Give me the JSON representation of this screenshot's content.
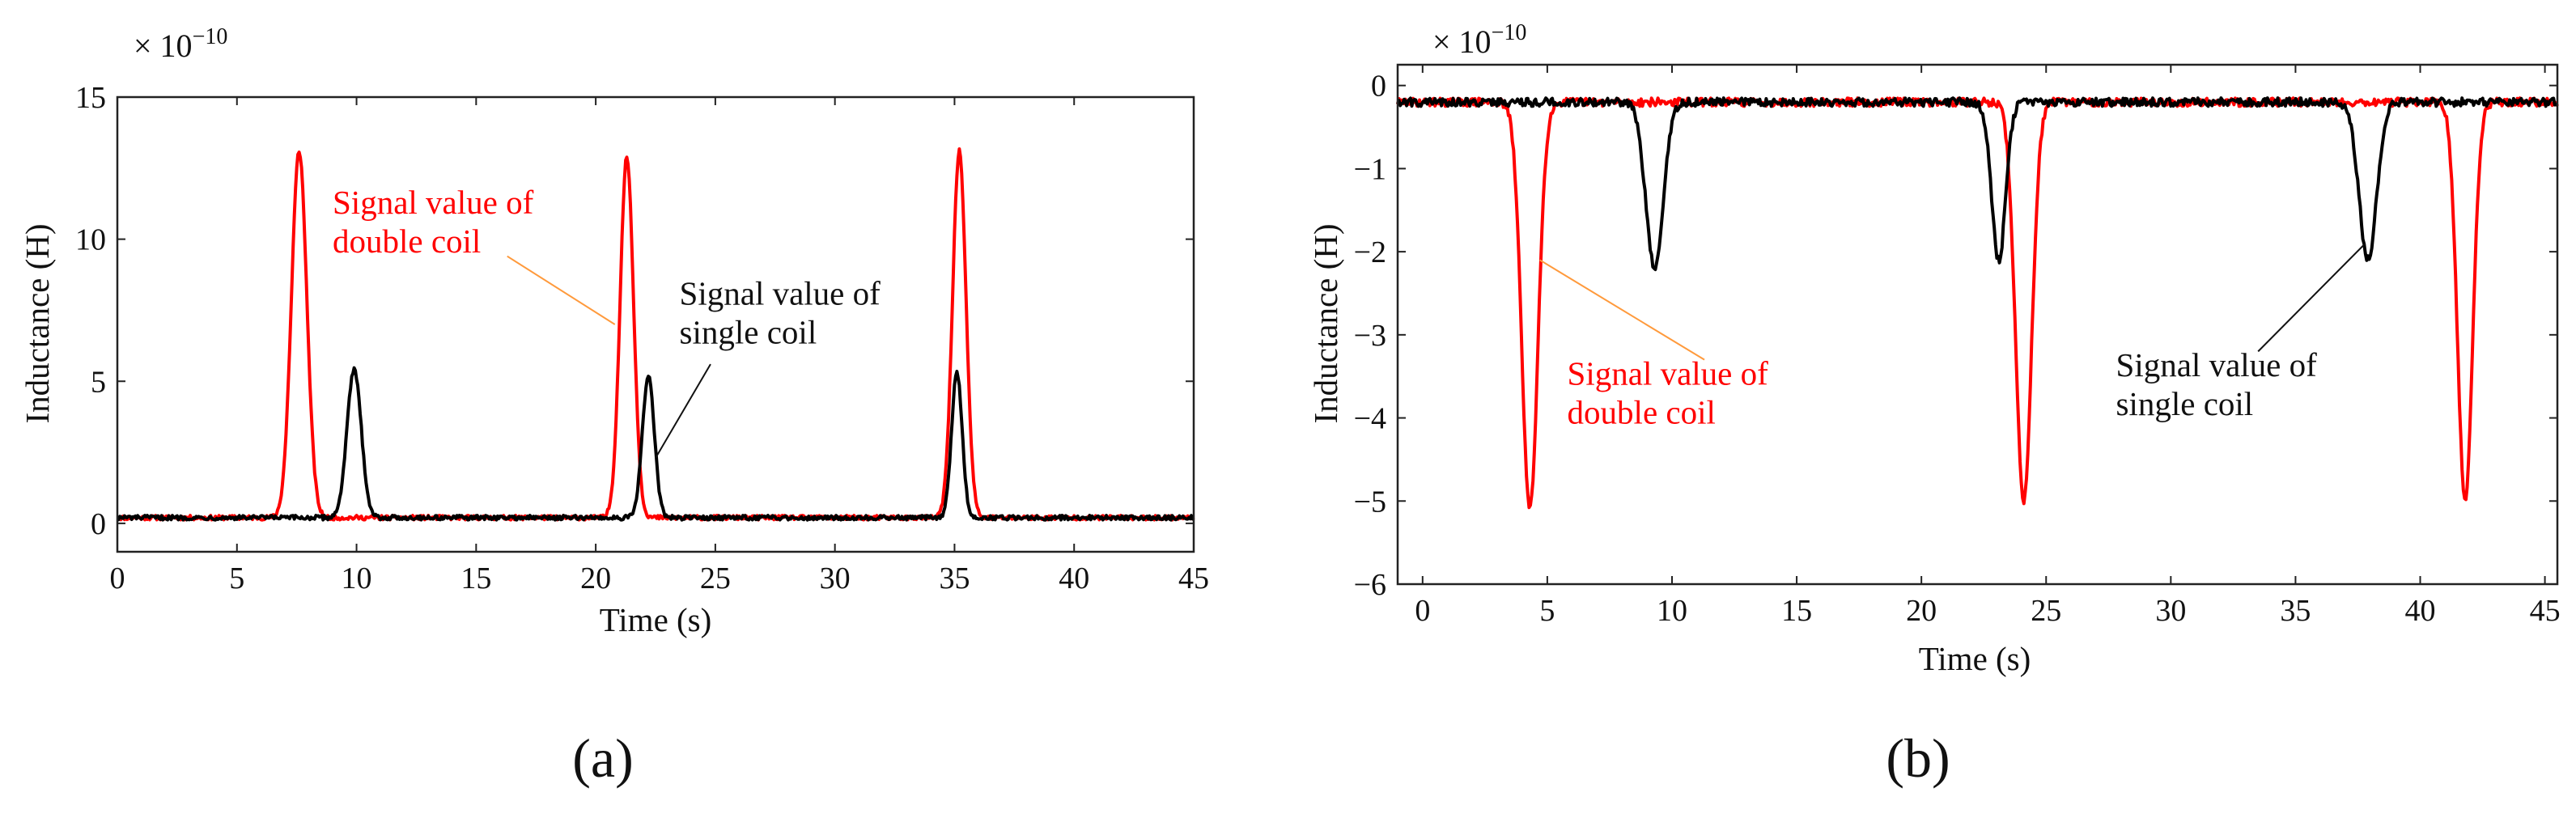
{
  "chart_data": [
    {
      "type": "line",
      "panel_label": "(a)",
      "scale_prefix": "× 10",
      "scale_exponent": "−10",
      "xlabel": "Time (s)",
      "ylabel": "Inductance (H)",
      "xlim": [
        0,
        45
      ],
      "ylim": [
        -1,
        15
      ],
      "xticks": [
        0,
        5,
        10,
        15,
        20,
        25,
        30,
        35,
        40,
        45
      ],
      "xtick_labels": [
        "0",
        "5",
        "10",
        "15",
        "20",
        "25",
        "30",
        "35",
        "40",
        "45"
      ],
      "yticks": [
        0,
        5,
        10,
        15
      ],
      "ytick_labels": [
        "0",
        "5",
        "10",
        "15"
      ],
      "baseline": 0.2,
      "noise": 0.08,
      "series": [
        {
          "name": "Signal value of double coil",
          "color": "#ff0000",
          "peaks": [
            [
              7.6,
              13.1,
              0.32
            ],
            [
              21.3,
              12.9,
              0.28
            ],
            [
              35.2,
              13.1,
              0.28
            ]
          ]
        },
        {
          "name": "Signal value of single coil",
          "color": "#000000",
          "peaks": [
            [
              9.9,
              5.4,
              0.3
            ],
            [
              22.2,
              5.2,
              0.25
            ],
            [
              35.1,
              5.3,
              0.22
            ]
          ]
        }
      ],
      "annotations": [
        {
          "id": "double",
          "lines": [
            "Signal value of",
            "double coil"
          ],
          "color": "#ff0000",
          "text_at": [
            9,
            10.9
          ],
          "line_from": [
            16.3,
            9.4
          ],
          "line_to": [
            20.8,
            7.0
          ],
          "line_color": "#ff9a3c"
        },
        {
          "id": "single",
          "lines": [
            "Signal value of",
            "single coil"
          ],
          "color": "#111111",
          "text_at": [
            23.5,
            7.7
          ],
          "line_from": [
            24.8,
            5.6
          ],
          "line_to": [
            22.5,
            2.3
          ],
          "line_color": "#111111"
        }
      ]
    },
    {
      "type": "line",
      "panel_label": "(b)",
      "scale_prefix": "× 10",
      "scale_exponent": "−10",
      "xlabel": "Time (s)",
      "ylabel": "Inductance (H)",
      "xlim": [
        -1,
        45.5
      ],
      "ylim": [
        -6,
        0.25
      ],
      "xticks": [
        0,
        5,
        10,
        15,
        20,
        25,
        30,
        35,
        40,
        45
      ],
      "xtick_labels": [
        "0",
        "5",
        "10",
        "15",
        "20",
        "25",
        "30",
        "35",
        "40",
        "45"
      ],
      "yticks": [
        0,
        -1,
        -2,
        -3,
        -4,
        -5,
        -6
      ],
      "ytick_labels": [
        "0",
        "−1",
        "−2",
        "−3",
        "−4",
        "−5",
        "−6"
      ],
      "baseline": -0.2,
      "noise": 0.05,
      "series": [
        {
          "name": "Signal value of double coil",
          "color": "#ff0000",
          "peaks": [
            [
              4.3,
              -5.1,
              0.32
            ],
            [
              24.1,
              -5.0,
              0.32
            ],
            [
              41.8,
              -5.0,
              0.3
            ]
          ]
        },
        {
          "name": "Signal value of single coil",
          "color": "#000000",
          "peaks": [
            [
              9.3,
              -2.2,
              0.35
            ],
            [
              23.1,
              -2.1,
              0.28
            ],
            [
              37.9,
              -2.1,
              0.35
            ]
          ]
        }
      ],
      "annotations": [
        {
          "id": "double",
          "lines": [
            "Signal value of",
            "double coil"
          ],
          "color": "#ff0000",
          "text_at": [
            5.8,
            -3.6
          ],
          "line_from": [
            11.3,
            -3.3
          ],
          "line_to": [
            4.7,
            -2.1
          ],
          "line_color": "#ff9a3c"
        },
        {
          "id": "single",
          "lines": [
            "Signal value of",
            "single coil"
          ],
          "color": "#111111",
          "text_at": [
            27.8,
            -3.5
          ],
          "line_from": [
            33.5,
            -3.2
          ],
          "line_to": [
            37.8,
            -1.9
          ],
          "line_color": "#111111"
        }
      ]
    }
  ]
}
